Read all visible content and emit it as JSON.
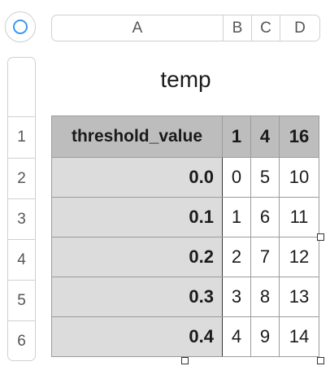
{
  "columns": [
    "A",
    "B",
    "C",
    "D"
  ],
  "rows": [
    "1",
    "2",
    "3",
    "4",
    "5",
    "6"
  ],
  "table": {
    "title": "temp",
    "header": [
      "threshold_value",
      "1",
      "4",
      "16"
    ],
    "body": [
      [
        "0.0",
        "0",
        "5",
        "10"
      ],
      [
        "0.1",
        "1",
        "6",
        "11"
      ],
      [
        "0.2",
        "2",
        "7",
        "12"
      ],
      [
        "0.3",
        "3",
        "8",
        "13"
      ],
      [
        "0.4",
        "4",
        "9",
        "14"
      ]
    ]
  },
  "colors": {
    "accent": "#3d96f2",
    "header_fill": "#bdbdbd",
    "label_fill": "#dcdcdc"
  },
  "icons": {
    "corner": "circle-select-all-icon"
  }
}
